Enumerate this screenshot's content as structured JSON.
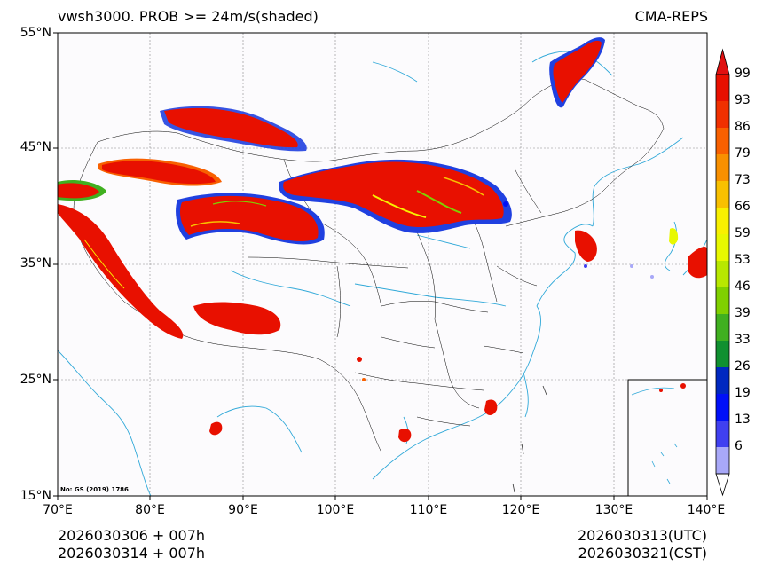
{
  "title": {
    "left": "vwsh3000. PROB >= 24m/s(shaded)",
    "right": "CMA-REPS"
  },
  "axes": {
    "lat_labels": [
      "55°N",
      "45°N",
      "35°N",
      "25°N",
      "15°N"
    ],
    "lon_labels": [
      "70°E",
      "80°E",
      "90°E",
      "100°E",
      "110°E",
      "120°E",
      "130°E",
      "140°E"
    ]
  },
  "colorbar": {
    "labels": [
      "99",
      "93",
      "86",
      "79",
      "73",
      "66",
      "59",
      "53",
      "46",
      "39",
      "33",
      "26",
      "19",
      "13",
      "6"
    ],
    "colors": [
      "#e81000",
      "#f03000",
      "#f86000",
      "#f89000",
      "#f8c000",
      "#f8f000",
      "#e8f800",
      "#b8e800",
      "#80d000",
      "#40b020",
      "#109030",
      "#0028c0",
      "#0010f8",
      "#4040f0",
      "#a8a8f8"
    ],
    "top_arrow_color": "#e01010",
    "bottom_arrow_color": "#ffffff"
  },
  "watermark": "No: GS (2019) 1786",
  "footer": {
    "left_line1": "2026030306  +  007h",
    "left_line2": "2026030314  +  007h",
    "right_line1": "2026030313(UTC)",
    "right_line2": "2026030321(CST)"
  },
  "colors": {
    "land_fill": "#fcfbfd",
    "river": "#2fa8d8",
    "border": "#000000",
    "grid": "#888888"
  }
}
